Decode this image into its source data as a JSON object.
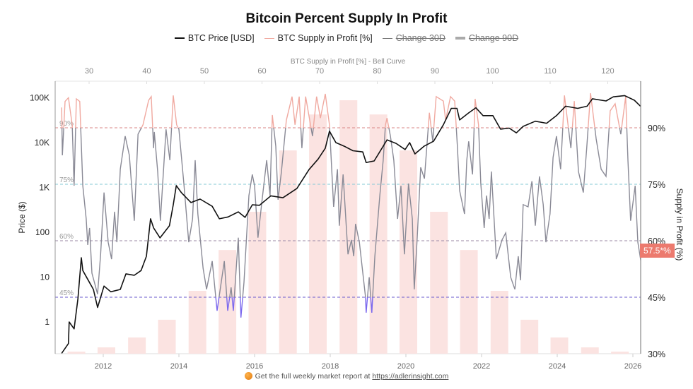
{
  "title": "Bitcoin Percent Supply In Profit",
  "legend": [
    {
      "label": "BTC Price [USD]",
      "color": "#111111",
      "hidden": false
    },
    {
      "label": "BTC Supply in Profit [%]",
      "color": "#f0a9a0",
      "hidden": false
    },
    {
      "label": "Change 30D",
      "color": "#888888",
      "hidden": true
    },
    {
      "label": "Change 90D",
      "color": "#999999",
      "hidden": true
    }
  ],
  "footer": {
    "text": "Get the full weekly market report at",
    "link": "https://adlerinsight.com"
  },
  "badge": "57.5*%",
  "chart_data": {
    "type": "line",
    "title": "Bitcoin Percent Supply In Profit",
    "top_axis": {
      "label": "BTC Supply in Profit [%] - Bell Curve",
      "ticks": [
        30,
        40,
        50,
        60,
        70,
        80,
        90,
        100,
        110,
        120
      ]
    },
    "left_axis": {
      "label": "Price ($)",
      "scale": "log",
      "range": [
        0.2,
        240000
      ],
      "ticks": [
        {
          "v": 100000,
          "t": "100K"
        },
        {
          "v": 10000,
          "t": "10K"
        },
        {
          "v": 1000,
          "t": "1K"
        },
        {
          "v": 100,
          "t": "100"
        },
        {
          "v": 10,
          "t": "10"
        },
        {
          "v": 1,
          "t": "1"
        }
      ]
    },
    "right_axis": {
      "label": "Supply in Profit (%)",
      "range": [
        30,
        102.4
      ],
      "ticks": [
        {
          "v": 90,
          "t": "90%"
        },
        {
          "v": 75,
          "t": "75%"
        },
        {
          "v": 60,
          "t": "60%"
        },
        {
          "v": 45,
          "t": "45%"
        },
        {
          "v": 30,
          "t": "30%"
        }
      ]
    },
    "x_axis": {
      "range": [
        2010.73,
        2026.3
      ],
      "ticks": [
        2012,
        2014,
        2016,
        2018,
        2020,
        2022,
        2024,
        2026
      ]
    },
    "threshold_lines": [
      {
        "value": 90,
        "label": "90%",
        "color": "#d98585"
      },
      {
        "value": 75,
        "label": "75%",
        "color": "#86c9d6"
      },
      {
        "value": 60,
        "label": "60%",
        "color": "#9b8aa6"
      },
      {
        "value": 45,
        "label": "45%",
        "color": "#6a5acd"
      }
    ],
    "colors": {
      "above90": "#f0a9a0",
      "mid": "#8a8a96",
      "below45": "#7b68ee",
      "price": "#111111",
      "bars": "#fbe3e1"
    },
    "bell_curve": {
      "centers": [
        27.8,
        33.0,
        38.3,
        43.5,
        48.8,
        54.0,
        59.2,
        64.5,
        69.7,
        75.0,
        80.2,
        85.4,
        90.7,
        95.9,
        101.2,
        106.4,
        111.6,
        116.9,
        122.1
      ],
      "relative_heights": [
        0.8,
        2.5,
        6.4,
        13.4,
        24.8,
        40.9,
        56.0,
        80.2,
        94.4,
        100,
        94.4,
        80.2,
        56.0,
        40.9,
        24.8,
        13.4,
        6.4,
        2.5,
        0.8
      ]
    },
    "series": [
      {
        "name": "BTC Price [USD]",
        "axis": "left",
        "x": [
          2010.9,
          2011.08,
          2011.1,
          2011.23,
          2011.33,
          2011.42,
          2011.46,
          2011.74,
          2011.85,
          2012.02,
          2012.2,
          2012.45,
          2012.6,
          2012.82,
          2013.0,
          2013.14,
          2013.25,
          2013.33,
          2013.5,
          2013.75,
          2013.85,
          2013.93,
          2014.07,
          2014.32,
          2014.56,
          2014.88,
          2015.07,
          2015.3,
          2015.57,
          2015.75,
          2015.94,
          2016.13,
          2016.43,
          2016.75,
          2017.12,
          2017.44,
          2017.68,
          2017.87,
          2017.98,
          2018.15,
          2018.37,
          2018.6,
          2018.86,
          2018.95,
          2019.16,
          2019.4,
          2019.5,
          2019.74,
          2019.98,
          2020.1,
          2020.24,
          2020.48,
          2020.73,
          2020.99,
          2021.2,
          2021.35,
          2021.42,
          2021.66,
          2021.85,
          2022.04,
          2022.3,
          2022.5,
          2022.73,
          2022.92,
          2023.1,
          2023.42,
          2023.72,
          2023.98,
          2024.22,
          2024.54,
          2024.79,
          2024.93,
          2025.29,
          2025.48,
          2025.78,
          2026.04,
          2026.2
        ],
        "y": [
          0.2,
          0.33,
          1,
          0.7,
          3.3,
          27,
          14,
          5.3,
          2.1,
          6.3,
          4.7,
          5.3,
          11.8,
          11,
          14,
          29,
          200,
          125,
          75,
          140,
          410,
          1100,
          760,
          460,
          550,
          380,
          200,
          220,
          285,
          215,
          410,
          400,
          650,
          590,
          950,
          2500,
          4300,
          7500,
          18000,
          10000,
          8300,
          6600,
          6200,
          3600,
          3900,
          8300,
          11500,
          9600,
          7000,
          10000,
          5600,
          8300,
          10700,
          25000,
          58000,
          58000,
          32000,
          46000,
          60000,
          40000,
          40000,
          20000,
          21000,
          16500,
          23000,
          30000,
          27000,
          40000,
          65000,
          58000,
          65000,
          95000,
          85000,
          105000,
          112000,
          88000,
          65000
        ]
      },
      {
        "name": "BTC Supply in Profit [%]",
        "axis": "right",
        "x": [
          2010.9,
          2010.92,
          2010.99,
          2011.08,
          2011.18,
          2011.23,
          2011.29,
          2011.38,
          2011.46,
          2011.55,
          2011.59,
          2011.64,
          2011.7,
          2011.85,
          2011.93,
          2012.02,
          2012.13,
          2012.22,
          2012.3,
          2012.36,
          2012.45,
          2012.58,
          2012.69,
          2012.82,
          2012.92,
          2013.05,
          2013.2,
          2013.27,
          2013.33,
          2013.35,
          2013.44,
          2013.51,
          2013.66,
          2013.76,
          2013.85,
          2013.94,
          2014.0,
          2014.13,
          2014.26,
          2014.36,
          2014.43,
          2014.5,
          2014.64,
          2014.73,
          2014.88,
          2015.01,
          2015.2,
          2015.29,
          2015.38,
          2015.44,
          2015.57,
          2015.64,
          2015.72,
          2015.85,
          2015.94,
          2016.0,
          2016.09,
          2016.19,
          2016.32,
          2016.41,
          2016.47,
          2016.56,
          2016.62,
          2016.71,
          2016.84,
          2016.99,
          2017.07,
          2017.18,
          2017.25,
          2017.35,
          2017.53,
          2017.64,
          2017.74,
          2017.87,
          2017.98,
          2018.09,
          2018.19,
          2018.24,
          2018.34,
          2018.47,
          2018.56,
          2018.62,
          2018.67,
          2018.77,
          2018.93,
          2018.95,
          2019.03,
          2019.1,
          2019.18,
          2019.31,
          2019.4,
          2019.46,
          2019.5,
          2019.59,
          2019.68,
          2019.78,
          2019.87,
          2019.96,
          2020.07,
          2020.17,
          2020.22,
          2020.3,
          2020.39,
          2020.49,
          2020.62,
          2020.71,
          2020.8,
          2020.99,
          2021.05,
          2021.18,
          2021.29,
          2021.36,
          2021.42,
          2021.55,
          2021.61,
          2021.66,
          2021.76,
          2021.83,
          2021.92,
          2021.98,
          2022.07,
          2022.13,
          2022.2,
          2022.26,
          2022.39,
          2022.54,
          2022.64,
          2022.77,
          2022.88,
          2022.97,
          2023.03,
          2023.1,
          2023.23,
          2023.33,
          2023.42,
          2023.53,
          2023.63,
          2023.7,
          2023.81,
          2023.89,
          2023.98,
          2024.09,
          2024.19,
          2024.36,
          2024.45,
          2024.56,
          2024.69,
          2024.78,
          2024.88,
          2025.03,
          2025.16,
          2025.29,
          2025.4,
          2025.53,
          2025.68,
          2025.81,
          2025.87,
          2025.94,
          2026.06,
          2026.13,
          2026.22
        ],
        "y": [
          95.4,
          82.7,
          97,
          98,
          90.8,
          74.6,
          97.7,
          97,
          74.6,
          65.8,
          58.9,
          63.4,
          51.4,
          45.8,
          56.4,
          72.8,
          59.6,
          55.1,
          67.7,
          59.6,
          79,
          87.8,
          82.7,
          65.3,
          88.3,
          90.8,
          97.3,
          98.3,
          84.6,
          88.9,
          78.4,
          65.3,
          89.6,
          81.4,
          98.6,
          90.8,
          89.6,
          75.2,
          59.6,
          65.8,
          81.4,
          67.1,
          52.7,
          47.1,
          54.6,
          41.4,
          54.6,
          41.4,
          47.6,
          41.4,
          60.8,
          39.6,
          48.9,
          72,
          77.6,
          74.6,
          60.8,
          70.1,
          81.4,
          72,
          93.4,
          85.1,
          70.9,
          78.4,
          92,
          98.3,
          90.8,
          98.3,
          84.6,
          98.3,
          87.8,
          98.3,
          92.6,
          99,
          90.8,
          69,
          79,
          64,
          77.6,
          56.4,
          60.2,
          55.9,
          64.5,
          59.6,
          45.2,
          40.9,
          50.3,
          40.9,
          55.9,
          72,
          81.4,
          90.8,
          92.6,
          87.8,
          81.4,
          65.8,
          74.6,
          56.4,
          75.2,
          65.8,
          47.1,
          60.8,
          79.5,
          76.5,
          94,
          86.4,
          98.3,
          97.1,
          92,
          98.3,
          97.1,
          85.1,
          73.3,
          67.1,
          81.4,
          86.4,
          77.6,
          97.7,
          90.8,
          75.2,
          63.4,
          72,
          65.8,
          78.4,
          55.1,
          60.2,
          62.1,
          50.3,
          47.1,
          55.9,
          49.5,
          69.6,
          69,
          75.8,
          64,
          77.1,
          69.6,
          59.6,
          67.1,
          82.1,
          87.8,
          79,
          98.6,
          84.6,
          97.1,
          78.4,
          72.8,
          84.6,
          99.2,
          87,
          79,
          77.1,
          94.5,
          96.4,
          88.3,
          98.3,
          81.4,
          65.3,
          74.6,
          59.6,
          54
        ]
      }
    ]
  }
}
